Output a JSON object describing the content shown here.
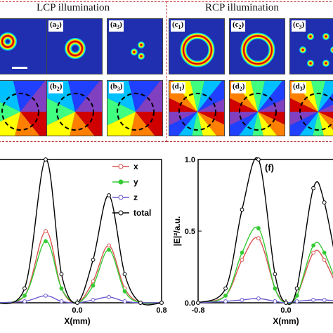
{
  "headers": {
    "lcp": "LCP illumination",
    "rcp": "RCP illumination"
  },
  "panels_top": [
    {
      "id": "a1",
      "label": "",
      "pattern": "ring-small"
    },
    {
      "id": "a2",
      "label": "a",
      "sub": "2",
      "pattern": "ring-medium"
    },
    {
      "id": "a3",
      "label": "a",
      "sub": "3",
      "pattern": "three-dots"
    },
    {
      "id": "c1",
      "label": "c",
      "sub": "1",
      "pattern": "ring-large"
    },
    {
      "id": "c2",
      "label": "c",
      "sub": "2",
      "pattern": "ring-large"
    },
    {
      "id": "c3",
      "label": "c",
      "sub": "3",
      "pattern": "six-dots"
    }
  ],
  "panels_bottom": [
    {
      "id": "b1",
      "label": "",
      "pattern": "phase-low"
    },
    {
      "id": "b2",
      "label": "b",
      "sub": "2",
      "pattern": "phase-low"
    },
    {
      "id": "b3",
      "label": "b",
      "sub": "3",
      "pattern": "phase-low"
    },
    {
      "id": "d1",
      "label": "d",
      "sub": "1",
      "pattern": "phase-high"
    },
    {
      "id": "d2",
      "label": "d",
      "sub": "2",
      "pattern": "phase-high"
    },
    {
      "id": "d3",
      "label": "d",
      "sub": "3",
      "pattern": "phase-high"
    }
  ],
  "colors": {
    "x": "#d9534f",
    "y": "#33cc33",
    "z": "#6a5acd",
    "total": "#000000",
    "background": "#1f2fb0"
  },
  "chart_data": [
    {
      "type": "line",
      "xlabel": "X(mm)",
      "xticks": [
        "0.0",
        "0.8"
      ],
      "xlim": [
        -0.8,
        0.8
      ],
      "ylim": [
        0,
        1.0
      ],
      "series": [
        {
          "name": "x",
          "x": [
            -0.8,
            -0.5,
            -0.3,
            -0.15,
            0,
            0.15,
            0.3,
            0.45,
            0.6,
            0.8
          ],
          "values": [
            0.0,
            0.05,
            0.5,
            0.1,
            0.0,
            0.15,
            0.4,
            0.1,
            0.0,
            0.0
          ]
        },
        {
          "name": "y",
          "x": [
            -0.8,
            -0.5,
            -0.3,
            -0.15,
            0,
            0.15,
            0.3,
            0.45,
            0.6,
            0.8
          ],
          "values": [
            0.0,
            0.05,
            0.43,
            0.1,
            0.0,
            0.12,
            0.37,
            0.08,
            0.0,
            0.0
          ]
        },
        {
          "name": "z",
          "x": [
            -0.8,
            -0.5,
            -0.3,
            -0.15,
            0,
            0.15,
            0.3,
            0.45,
            0.6,
            0.8
          ],
          "values": [
            0.0,
            0.01,
            0.05,
            0.01,
            0.0,
            0.02,
            0.04,
            0.01,
            0.0,
            0.0
          ]
        },
        {
          "name": "total",
          "x": [
            -0.8,
            -0.5,
            -0.3,
            -0.15,
            0,
            0.15,
            0.3,
            0.45,
            0.6,
            0.8
          ],
          "values": [
            0.0,
            0.1,
            1.0,
            0.2,
            0.0,
            0.3,
            0.75,
            0.2,
            0.0,
            0.0
          ]
        }
      ]
    },
    {
      "type": "line",
      "panel_label": "(f)",
      "ylabel": "|E|²/a.u.",
      "xlabel": "X(mm)",
      "xticks": [
        "-0.8",
        "0.0"
      ],
      "yticks": [
        "0.0",
        "0.5",
        "1.0"
      ],
      "xlim": [
        -0.8,
        0.8
      ],
      "ylim": [
        0,
        1.0
      ],
      "series": [
        {
          "name": "x",
          "x": [
            -0.8,
            -0.55,
            -0.4,
            -0.25,
            -0.1,
            0,
            0.1,
            0.25,
            0.35,
            0.5
          ],
          "values": [
            0.0,
            0.05,
            0.3,
            0.45,
            0.1,
            0.0,
            0.05,
            0.35,
            0.3,
            0.05
          ]
        },
        {
          "name": "y",
          "x": [
            -0.8,
            -0.55,
            -0.4,
            -0.25,
            -0.1,
            0,
            0.1,
            0.25,
            0.35,
            0.5
          ],
          "values": [
            0.0,
            0.05,
            0.35,
            0.52,
            0.1,
            0.0,
            0.05,
            0.4,
            0.35,
            0.05
          ]
        },
        {
          "name": "z",
          "x": [
            -0.8,
            -0.55,
            -0.4,
            -0.25,
            -0.1,
            0,
            0.1,
            0.25,
            0.35,
            0.5
          ],
          "values": [
            0.0,
            0.01,
            0.02,
            0.03,
            0.01,
            0.0,
            0.01,
            0.02,
            0.02,
            0.01
          ]
        },
        {
          "name": "total",
          "x": [
            -0.8,
            -0.55,
            -0.4,
            -0.25,
            -0.1,
            0,
            0.1,
            0.25,
            0.35,
            0.5
          ],
          "values": [
            0.0,
            0.1,
            0.65,
            1.0,
            0.2,
            0.0,
            0.1,
            0.8,
            0.7,
            0.1
          ]
        }
      ]
    }
  ]
}
